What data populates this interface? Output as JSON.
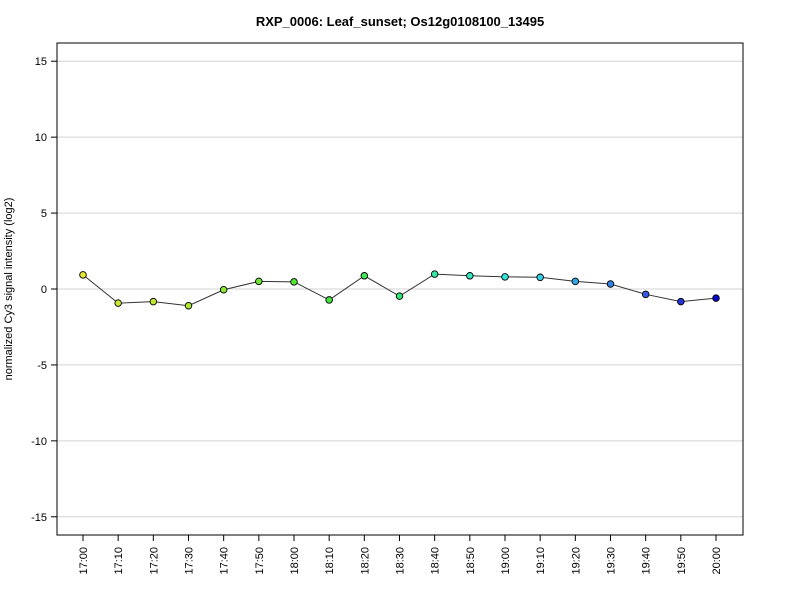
{
  "chart_data": {
    "type": "line",
    "title": "RXP_0006: Leaf_sunset; Os12g0108100_13495",
    "xlabel": "",
    "ylabel": "normalized Cy3 signal intensity (log2)",
    "ylim": [
      -16.2,
      16.2
    ],
    "yticks": [
      -15,
      -10,
      -5,
      0,
      5,
      10,
      15
    ],
    "ytick_labels": [
      "-15",
      "-10",
      "-5",
      "0",
      "5",
      "10",
      "15"
    ],
    "grid": "horizontal",
    "x": [
      "17:00",
      "17:10",
      "17:20",
      "17:30",
      "17:40",
      "17:50",
      "18:00",
      "18:10",
      "18:20",
      "18:30",
      "18:40",
      "18:50",
      "19:00",
      "19:10",
      "19:20",
      "19:30",
      "19:40",
      "19:50",
      "20:00"
    ],
    "series": [
      {
        "values": [
          0.93,
          -0.93,
          -0.83,
          -1.1,
          -0.05,
          0.5,
          0.47,
          -0.72,
          0.87,
          -0.47,
          0.98,
          0.87,
          0.8,
          0.77,
          0.5,
          0.33,
          -0.35,
          -0.83,
          -0.6
        ],
        "point_colors": [
          "#e6e633",
          "#cbe633",
          "#c0e633",
          "#aee633",
          "#8ce633",
          "#6ee633",
          "#55e633",
          "#44e644",
          "#3de65a",
          "#33e67a",
          "#33e6a4",
          "#33e6c0",
          "#33e6dc",
          "#33cfe6",
          "#33a8e6",
          "#3381e6",
          "#335ae6",
          "#2433d6",
          "#0a0acc"
        ]
      }
    ]
  }
}
